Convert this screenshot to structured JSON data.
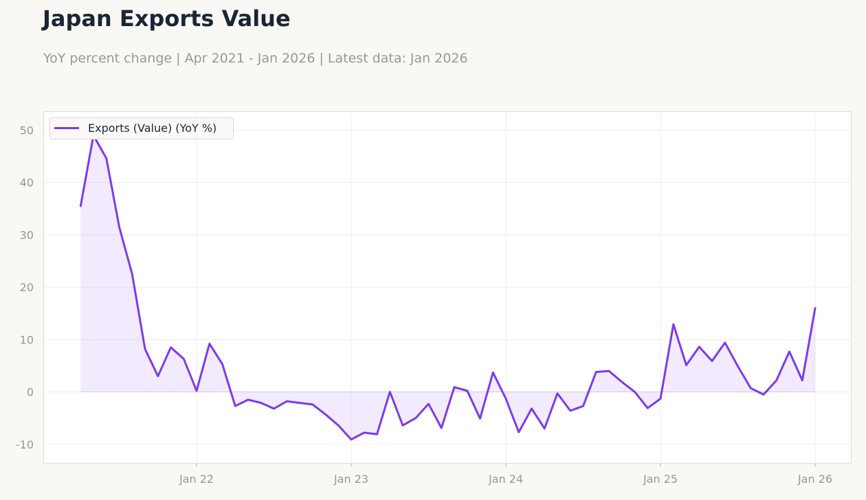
{
  "title": "Japan Exports Value",
  "subtitle": "YoY percent change | Apr 2021 - Jan 2026 | Latest data: Jan 2026",
  "colors": {
    "line": "#7c3aed",
    "fill": "#ede6fb",
    "axis_text": "#9a9792",
    "grid": "#efeeec",
    "frame": "#dedcd7",
    "background": "#ffffff",
    "page": "#f9f8f5"
  },
  "chart_data": {
    "type": "area",
    "x_start": "2021-04",
    "frequency": "monthly",
    "series": [
      {
        "name": "Exports (Value) (YoY %)",
        "values": [
          35.5,
          49.0,
          44.6,
          31.5,
          22.5,
          8.2,
          3.0,
          8.5,
          6.3,
          0.2,
          9.2,
          5.3,
          -2.7,
          -1.5,
          -2.1,
          -3.2,
          -1.8,
          -2.1,
          -2.4,
          -4.3,
          -6.4,
          -9.1,
          -7.8,
          -8.1,
          0.0,
          -6.4,
          -5.0,
          -2.3,
          -6.9,
          0.9,
          0.2,
          -5.1,
          3.7,
          -1.3,
          -7.7,
          -3.2,
          -7.0,
          -0.3,
          -3.6,
          -2.7,
          3.8,
          4.0,
          1.9,
          0.0,
          -3.1,
          -1.3,
          12.9,
          5.1,
          8.6,
          5.9,
          9.4,
          4.9,
          0.7,
          -0.5,
          2.2,
          7.7,
          2.2,
          16.0
        ]
      }
    ],
    "xlabel": "",
    "ylabel": "",
    "ylim": [
      -13.7,
      53.6
    ],
    "yticks": [
      -10,
      0,
      10,
      20,
      30,
      40,
      50
    ],
    "ytick_labels": [
      "-10",
      "0",
      "10",
      "20",
      "30",
      "40",
      "50"
    ],
    "xticks": [
      "2022-01",
      "2023-01",
      "2024-01",
      "2025-01",
      "2026-01"
    ],
    "xtick_labels": [
      "Jan 22",
      "Jan 23",
      "Jan 24",
      "Jan 25",
      "Jan 26"
    ],
    "grid": true,
    "legend_position": "top-left"
  }
}
